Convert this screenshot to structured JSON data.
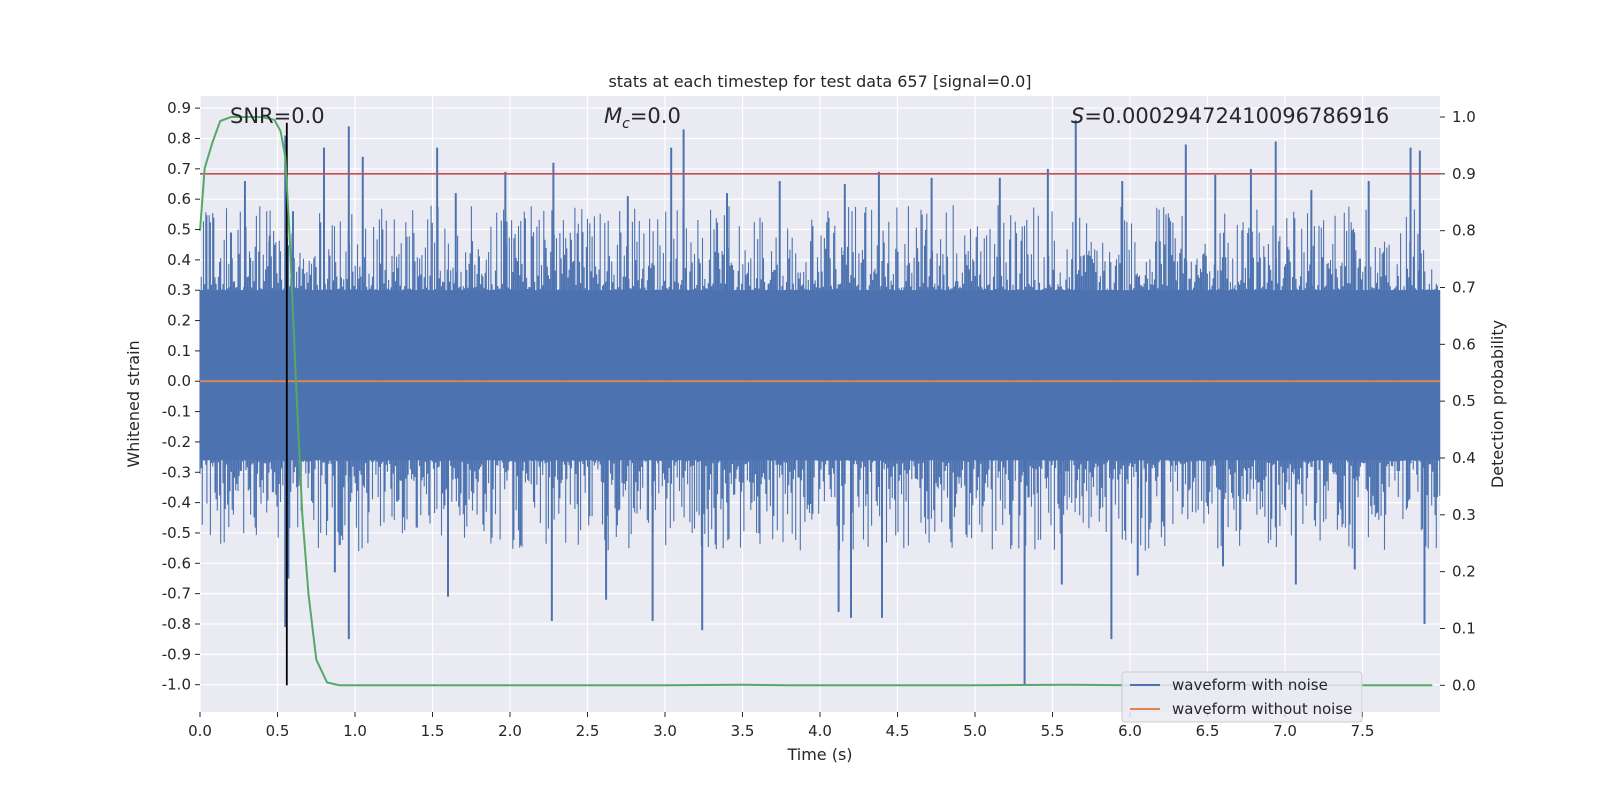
{
  "chart_data": {
    "type": "line",
    "title": "stats at each timestep for test data 657 [signal=0.0]",
    "xlabel": "Time (s)",
    "ylabel": "Whitened strain",
    "ylabel_right": "Detection probability",
    "xlim": [
      0.0,
      8.0
    ],
    "ylim": [
      -1.09,
      0.94
    ],
    "ylim_right": [
      -0.047,
      1.037
    ],
    "x_ticks": [
      "0.0",
      "0.5",
      "1.0",
      "1.5",
      "2.0",
      "2.5",
      "3.0",
      "3.5",
      "4.0",
      "4.5",
      "5.0",
      "5.5",
      "6.0",
      "6.5",
      "7.0",
      "7.5"
    ],
    "y_ticks": [
      "0.9",
      "0.8",
      "0.7",
      "0.6",
      "0.5",
      "0.4",
      "0.3",
      "0.2",
      "0.1",
      "0.0",
      "-0.1",
      "-0.2",
      "-0.3",
      "-0.4",
      "-0.5",
      "-0.6",
      "-0.7",
      "-0.8",
      "-0.9",
      "-1.0"
    ],
    "y_ticks_right": [
      "1.0",
      "0.9",
      "0.8",
      "0.7",
      "0.6",
      "0.5",
      "0.4",
      "0.3",
      "0.2",
      "0.1",
      "0.0"
    ],
    "grid": true,
    "legend_position": "bottom-right",
    "annotations": {
      "snr": "SNR=0.0",
      "mc_symbol": "M",
      "mc_sub": "c",
      "mc_rest": "=0.0",
      "s_symbol": "S",
      "s_rest": "=0.00029472410096786916"
    },
    "threshold_right": 0.9,
    "vertical_marker_x": 0.56,
    "series": [
      {
        "name": "waveform with noise",
        "color": "#4c72b0",
        "axis": "left",
        "envelope": {
          "upper": 0.3,
          "lower": -0.26
        },
        "spikes": [
          {
            "x": 0.2,
            "y": 0.49
          },
          {
            "x": 0.29,
            "y": 0.66
          },
          {
            "x": 0.45,
            "y": 0.48
          },
          {
            "x": 0.55,
            "y": 0.81
          },
          {
            "x": 0.6,
            "y": 0.56
          },
          {
            "x": 0.8,
            "y": 0.77
          },
          {
            "x": 0.96,
            "y": 0.84
          },
          {
            "x": 1.05,
            "y": 0.74
          },
          {
            "x": 1.53,
            "y": 0.77
          },
          {
            "x": 1.65,
            "y": 0.62
          },
          {
            "x": 1.97,
            "y": 0.69
          },
          {
            "x": 2.28,
            "y": 0.72
          },
          {
            "x": 2.76,
            "y": 0.61
          },
          {
            "x": 3.04,
            "y": 0.77
          },
          {
            "x": 3.12,
            "y": 0.83
          },
          {
            "x": 3.4,
            "y": 0.62
          },
          {
            "x": 3.74,
            "y": 0.66
          },
          {
            "x": 4.16,
            "y": 0.65
          },
          {
            "x": 4.38,
            "y": 0.69
          },
          {
            "x": 4.72,
            "y": 0.67
          },
          {
            "x": 5.16,
            "y": 0.67
          },
          {
            "x": 5.47,
            "y": 0.7
          },
          {
            "x": 5.65,
            "y": 0.86
          },
          {
            "x": 5.95,
            "y": 0.66
          },
          {
            "x": 6.36,
            "y": 0.78
          },
          {
            "x": 6.55,
            "y": 0.68
          },
          {
            "x": 6.78,
            "y": 0.7
          },
          {
            "x": 6.94,
            "y": 0.79
          },
          {
            "x": 7.17,
            "y": 0.63
          },
          {
            "x": 7.54,
            "y": 0.66
          },
          {
            "x": 7.81,
            "y": 0.77
          },
          {
            "x": 7.87,
            "y": 0.76
          },
          {
            "x": 0.55,
            "y": -0.81
          },
          {
            "x": 0.57,
            "y": -0.65
          },
          {
            "x": 0.87,
            "y": -0.63
          },
          {
            "x": 0.96,
            "y": -0.85
          },
          {
            "x": 1.6,
            "y": -0.71
          },
          {
            "x": 2.27,
            "y": -0.79
          },
          {
            "x": 2.62,
            "y": -0.72
          },
          {
            "x": 2.92,
            "y": -0.79
          },
          {
            "x": 3.24,
            "y": -0.82
          },
          {
            "x": 4.12,
            "y": -0.76
          },
          {
            "x": 4.2,
            "y": -0.78
          },
          {
            "x": 4.4,
            "y": -0.78
          },
          {
            "x": 5.32,
            "y": -1.0
          },
          {
            "x": 5.56,
            "y": -0.67
          },
          {
            "x": 5.88,
            "y": -0.85
          },
          {
            "x": 6.05,
            "y": -0.64
          },
          {
            "x": 6.6,
            "y": -0.61
          },
          {
            "x": 7.07,
            "y": -0.67
          },
          {
            "x": 7.45,
            "y": -0.62
          },
          {
            "x": 7.9,
            "y": -0.8
          }
        ]
      },
      {
        "name": "waveform without noise",
        "color": "#dd8452",
        "axis": "left",
        "constant_y": 0.0
      },
      {
        "color": "#55a868",
        "axis": "right",
        "x": [
          0.0,
          0.03,
          0.08,
          0.13,
          0.2,
          0.3,
          0.4,
          0.48,
          0.52,
          0.55,
          0.58,
          0.62,
          0.66,
          0.7,
          0.75,
          0.82,
          0.9,
          1.0,
          2.0,
          3.0,
          3.5,
          3.8,
          4.5,
          5.0,
          5.6,
          6.0,
          7.0,
          7.95
        ],
        "y": [
          0.8,
          0.91,
          0.955,
          0.993,
          1.0,
          1.0,
          1.0,
          0.995,
          0.975,
          0.93,
          0.78,
          0.53,
          0.3,
          0.16,
          0.045,
          0.005,
          0.0,
          0.0,
          0.0,
          0.0,
          0.001,
          0.0,
          0.0,
          0.0,
          0.001,
          0.0,
          0.0,
          0.0
        ]
      }
    ]
  }
}
